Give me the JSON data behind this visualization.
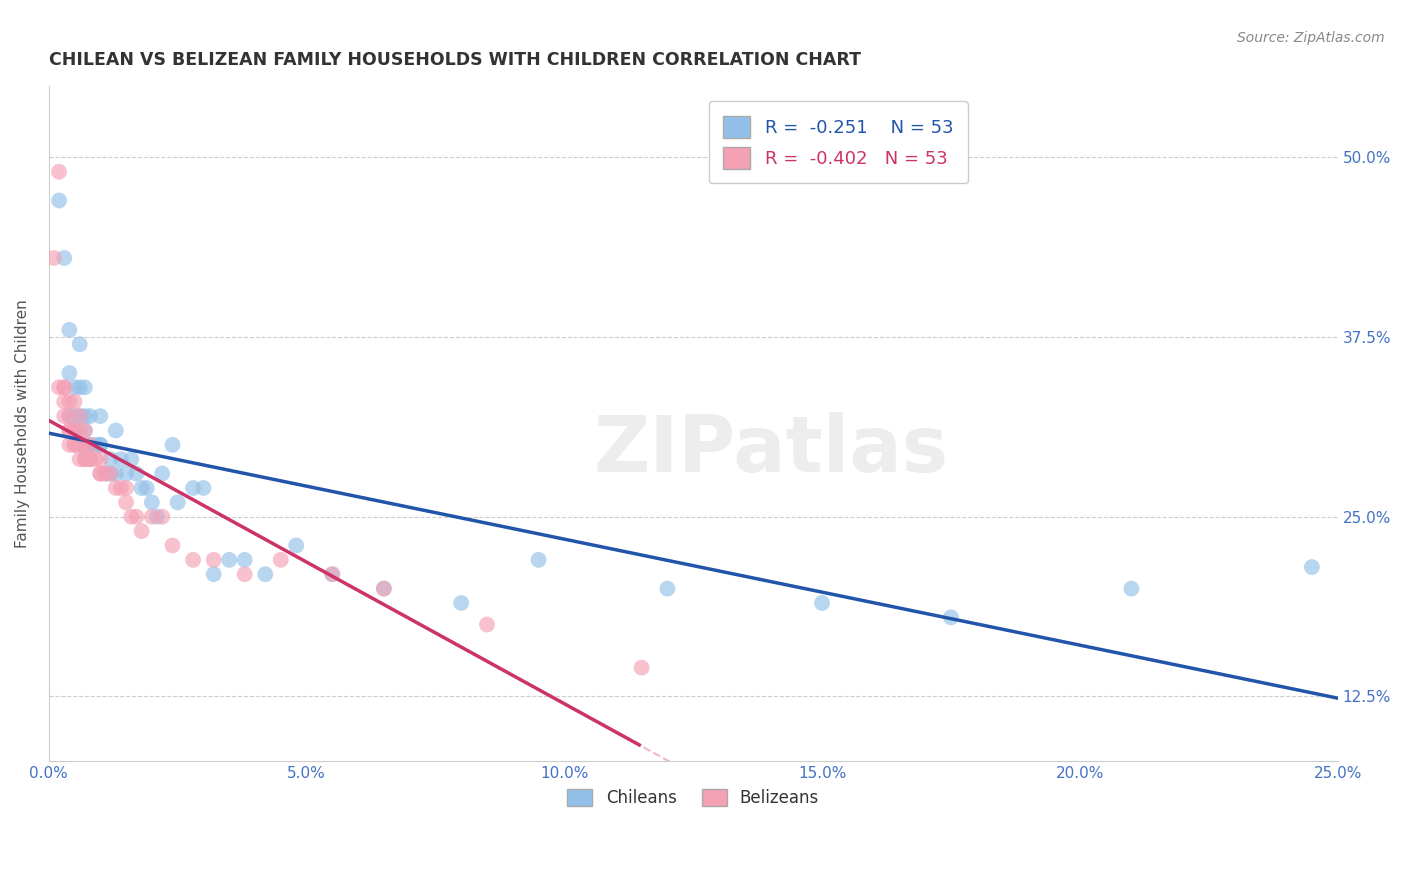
{
  "title": "CHILEAN VS BELIZEAN FAMILY HOUSEHOLDS WITH CHILDREN CORRELATION CHART",
  "source": "Source: ZipAtlas.com",
  "ylabel": "Family Households with Children",
  "xlim": [
    0.0,
    0.25
  ],
  "ylim": [
    0.08,
    0.55
  ],
  "xticks": [
    0.0,
    0.05,
    0.1,
    0.15,
    0.2,
    0.25
  ],
  "yticks": [
    0.125,
    0.25,
    0.375,
    0.5
  ],
  "ytick_labels": [
    "12.5%",
    "25.0%",
    "37.5%",
    "50.0%"
  ],
  "xtick_labels": [
    "0.0%",
    "5.0%",
    "10.0%",
    "15.0%",
    "20.0%",
    "25.0%"
  ],
  "r_chilean": -0.251,
  "r_belizean": -0.402,
  "n_chilean": 53,
  "n_belizean": 53,
  "legend_label_1": "Chileans",
  "legend_label_2": "Belizeans",
  "color_chilean": "#92C0E8",
  "color_belizean": "#F4A0B5",
  "line_color_chilean": "#2255AA",
  "line_color_belizean": "#CC3366",
  "watermark": "ZIPatlas",
  "chilean_x": [
    0.002,
    0.003,
    0.004,
    0.004,
    0.004,
    0.005,
    0.005,
    0.005,
    0.006,
    0.006,
    0.006,
    0.007,
    0.007,
    0.007,
    0.007,
    0.008,
    0.008,
    0.009,
    0.01,
    0.01,
    0.01,
    0.011,
    0.012,
    0.012,
    0.013,
    0.013,
    0.014,
    0.015,
    0.016,
    0.017,
    0.018,
    0.019,
    0.02,
    0.021,
    0.022,
    0.024,
    0.025,
    0.028,
    0.03,
    0.032,
    0.035,
    0.038,
    0.042,
    0.048,
    0.055,
    0.065,
    0.08,
    0.095,
    0.12,
    0.15,
    0.175,
    0.21,
    0.245
  ],
  "chilean_y": [
    0.47,
    0.43,
    0.38,
    0.35,
    0.32,
    0.34,
    0.32,
    0.31,
    0.37,
    0.34,
    0.32,
    0.34,
    0.32,
    0.31,
    0.3,
    0.32,
    0.3,
    0.3,
    0.32,
    0.3,
    0.3,
    0.28,
    0.29,
    0.28,
    0.31,
    0.28,
    0.29,
    0.28,
    0.29,
    0.28,
    0.27,
    0.27,
    0.26,
    0.25,
    0.28,
    0.3,
    0.26,
    0.27,
    0.27,
    0.21,
    0.22,
    0.22,
    0.21,
    0.23,
    0.21,
    0.2,
    0.19,
    0.22,
    0.2,
    0.19,
    0.18,
    0.2,
    0.215
  ],
  "belizean_x": [
    0.001,
    0.002,
    0.002,
    0.003,
    0.003,
    0.003,
    0.003,
    0.004,
    0.004,
    0.004,
    0.004,
    0.004,
    0.005,
    0.005,
    0.005,
    0.005,
    0.005,
    0.006,
    0.006,
    0.006,
    0.006,
    0.006,
    0.007,
    0.007,
    0.007,
    0.007,
    0.008,
    0.008,
    0.008,
    0.009,
    0.01,
    0.01,
    0.01,
    0.011,
    0.012,
    0.013,
    0.014,
    0.015,
    0.015,
    0.016,
    0.017,
    0.018,
    0.02,
    0.022,
    0.024,
    0.028,
    0.032,
    0.038,
    0.045,
    0.055,
    0.065,
    0.085,
    0.115
  ],
  "belizean_y": [
    0.43,
    0.49,
    0.34,
    0.34,
    0.34,
    0.33,
    0.32,
    0.33,
    0.32,
    0.31,
    0.31,
    0.3,
    0.33,
    0.31,
    0.31,
    0.3,
    0.3,
    0.32,
    0.31,
    0.3,
    0.3,
    0.29,
    0.31,
    0.3,
    0.29,
    0.29,
    0.3,
    0.29,
    0.29,
    0.29,
    0.29,
    0.28,
    0.28,
    0.28,
    0.28,
    0.27,
    0.27,
    0.27,
    0.26,
    0.25,
    0.25,
    0.24,
    0.25,
    0.25,
    0.23,
    0.22,
    0.22,
    0.21,
    0.22,
    0.21,
    0.2,
    0.175,
    0.145
  ]
}
